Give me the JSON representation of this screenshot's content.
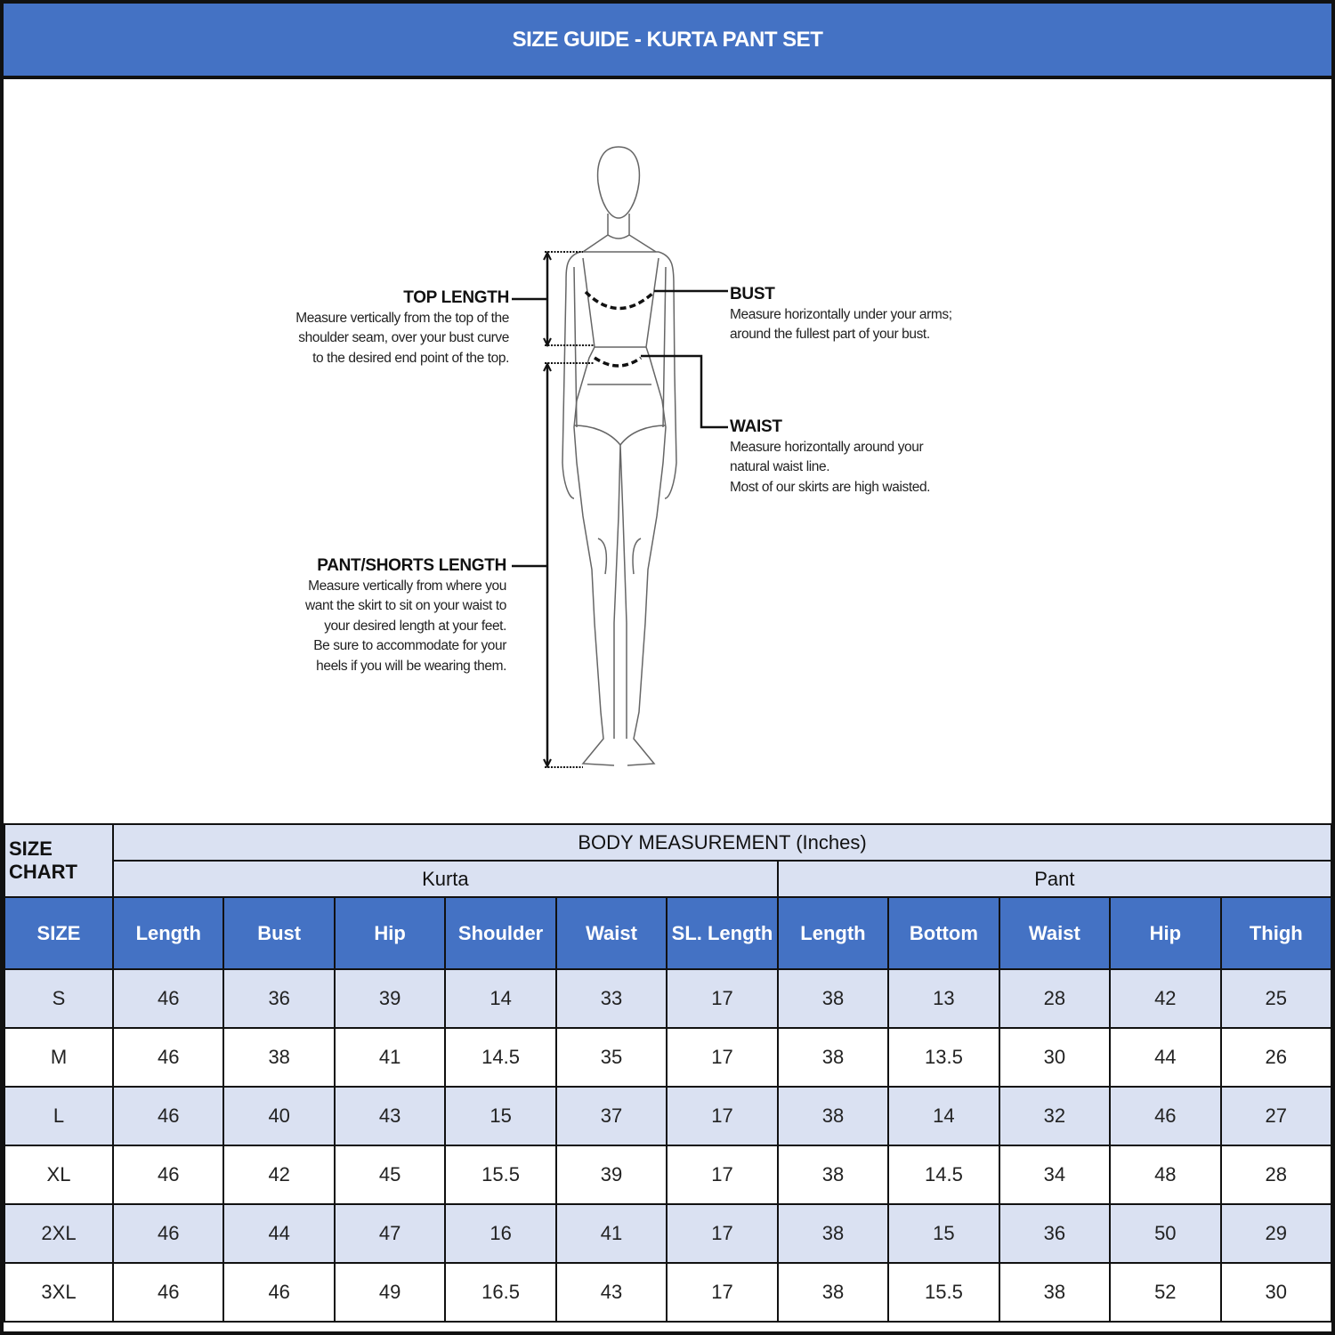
{
  "title": "SIZE GUIDE - KURTA PANT SET",
  "colors": {
    "header_blue": "#4472C4",
    "light_row": "#DAE1F2"
  },
  "figure": {
    "top_length": {
      "title": "TOP LENGTH",
      "lines": [
        "Measure vertically from the top of the",
        "shoulder seam, over your bust curve",
        "to the desired end point of the top."
      ]
    },
    "bust": {
      "title": "BUST",
      "lines": [
        "Measure horizontally under your arms;",
        "around the fullest part of your bust."
      ]
    },
    "waist": {
      "title": "WAIST",
      "lines": [
        "Measure horizontally around your",
        "natural waist line.",
        "Most of our skirts are high waisted."
      ]
    },
    "pant_length": {
      "title": "PANT/SHORTS LENGTH",
      "lines": [
        "Measure vertically from where you",
        "want the skirt to sit on your waist to",
        "your desired length at your feet.",
        "Be sure to accommodate for your",
        "heels if you will be wearing them."
      ]
    }
  },
  "table": {
    "corner_label": "SIZE CHART",
    "group_label": "BODY MEASUREMENT (Inches)",
    "kurta_label": "Kurta",
    "pant_label": "Pant",
    "columns": [
      "SIZE",
      "Length",
      "Bust",
      "Hip",
      "Shoulder",
      "Waist",
      "SL. Length",
      "Length",
      "Bottom",
      "Waist",
      "Hip",
      "Thigh"
    ],
    "rows": [
      [
        "S",
        "46",
        "36",
        "39",
        "14",
        "33",
        "17",
        "38",
        "13",
        "28",
        "42",
        "25"
      ],
      [
        "M",
        "46",
        "38",
        "41",
        "14.5",
        "35",
        "17",
        "38",
        "13.5",
        "30",
        "44",
        "26"
      ],
      [
        "L",
        "46",
        "40",
        "43",
        "15",
        "37",
        "17",
        "38",
        "14",
        "32",
        "46",
        "27"
      ],
      [
        "XL",
        "46",
        "42",
        "45",
        "15.5",
        "39",
        "17",
        "38",
        "14.5",
        "34",
        "48",
        "28"
      ],
      [
        "2XL",
        "46",
        "44",
        "47",
        "16",
        "41",
        "17",
        "38",
        "15",
        "36",
        "50",
        "29"
      ],
      [
        "3XL",
        "46",
        "46",
        "49",
        "16.5",
        "43",
        "17",
        "38",
        "15.5",
        "38",
        "52",
        "30"
      ]
    ]
  }
}
